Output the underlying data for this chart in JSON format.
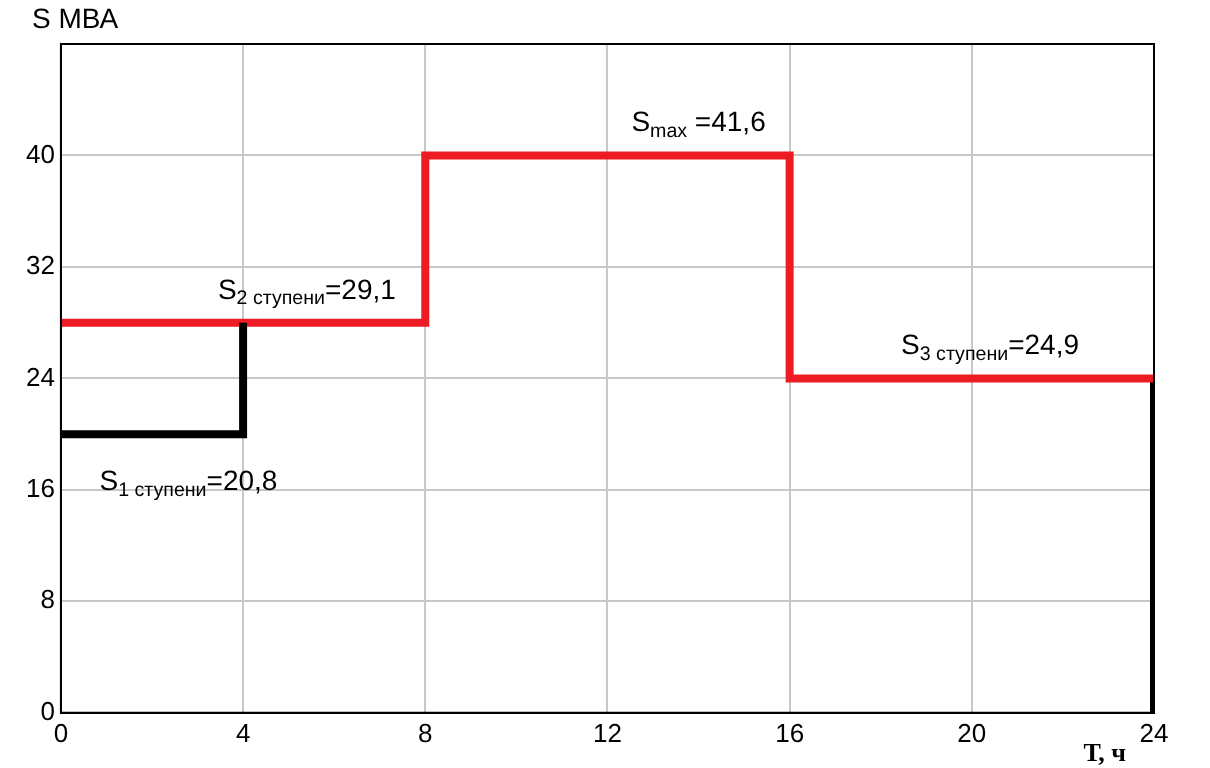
{
  "chart_data": {
    "type": "step",
    "xlabel": "Т, ч",
    "ylabel": "S МВА",
    "xlim": [
      0,
      24
    ],
    "xticks": [
      0,
      4,
      8,
      12,
      16,
      20,
      24
    ],
    "ylim": [
      0,
      48
    ],
    "yticks": [
      0,
      8,
      16,
      24,
      32,
      40
    ],
    "grid": true,
    "legend": false,
    "marker": "none",
    "line_style": "solid",
    "series": [
      {
        "color": "#000000",
        "x": [
          0,
          4
        ],
        "values": [
          20,
          28
        ]
      },
      {
        "color": "#ed1c24",
        "x": [
          0,
          8,
          16,
          24
        ],
        "values": [
          28,
          40,
          24,
          24
        ]
      },
      {
        "color": "#000000",
        "x": [
          24,
          24
        ],
        "values": [
          24,
          0
        ]
      }
    ],
    "annotations": [
      {
        "text": "S$_{1 ступени}$=20,8",
        "x": 2.8,
        "y": 20
      },
      {
        "text": "S$_{2 ступени}$=29,1",
        "x": 5.4,
        "y": 28
      },
      {
        "text": "S$_{max}$ =41,6",
        "x": 14,
        "y": 40
      },
      {
        "text": "S$_{3 ступени}$=24,9",
        "x": 20.4,
        "y": 24
      }
    ]
  }
}
